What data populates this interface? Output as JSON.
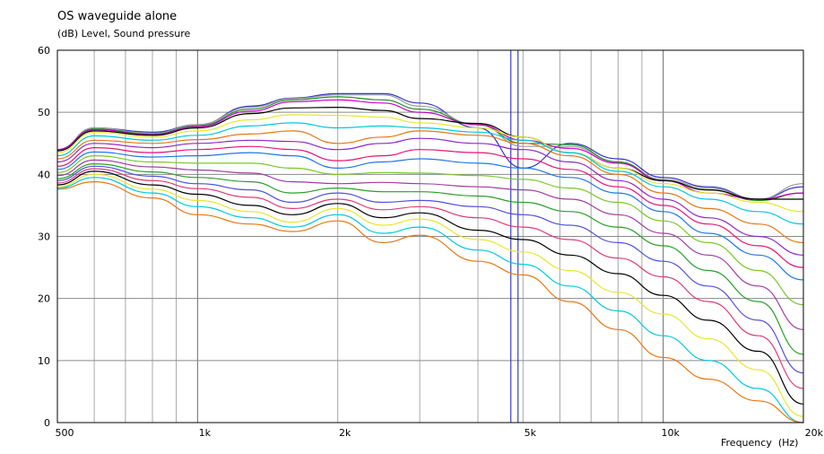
{
  "chart_data": {
    "type": "line",
    "title": "OS waveguide alone",
    "ylabel": "(dB)  Level, Sound pressure",
    "xlabel": "Frequency  (Hz)",
    "x_scale": "log",
    "xlim": [
      500,
      20000
    ],
    "ylim": [
      0,
      60
    ],
    "grid": true,
    "x_tick_labels": [
      {
        "value": 500,
        "label": "500"
      },
      {
        "value": 1000,
        "label": "1k"
      },
      {
        "value": 2000,
        "label": "2k"
      },
      {
        "value": 5000,
        "label": "5k"
      },
      {
        "value": 10000,
        "label": "10k"
      },
      {
        "value": 20000,
        "label": "20k"
      }
    ],
    "y_ticks": [
      0,
      10,
      20,
      30,
      40,
      50,
      60
    ],
    "marker_line_hz": 4750,
    "x": [
      500,
      600,
      800,
      1000,
      1300,
      1600,
      2000,
      2500,
      3000,
      4000,
      5000,
      6300,
      8000,
      10000,
      12500,
      16000,
      20000
    ],
    "series": [
      {
        "color": "#3232c8",
        "values": [
          44.0,
          47.5,
          46.8,
          48.0,
          51.0,
          52.3,
          53.0,
          53.0,
          51.5,
          47.5,
          41.0,
          45.0,
          42.5,
          39.5,
          38.0,
          36.0,
          38.0
        ]
      },
      {
        "color": "#9b9b9b",
        "values": [
          44.0,
          47.5,
          46.6,
          48.0,
          50.8,
          52.2,
          52.8,
          52.8,
          51.0,
          48.0,
          44.5,
          44.5,
          42.0,
          39.2,
          37.8,
          36.0,
          38.5
        ]
      },
      {
        "color": "#1e8c1e",
        "values": [
          44.0,
          47.3,
          46.5,
          47.8,
          50.5,
          52.0,
          52.5,
          52.0,
          50.5,
          48.0,
          45.0,
          44.8,
          42.0,
          39.0,
          37.5,
          35.8,
          37.0
        ]
      },
      {
        "color": "#c800c8",
        "values": [
          44.0,
          47.2,
          46.4,
          47.7,
          50.2,
          51.7,
          52.0,
          51.5,
          50.0,
          48.0,
          45.5,
          44.2,
          41.8,
          39.0,
          37.0,
          36.0,
          37.0
        ]
      },
      {
        "color": "#000000",
        "values": [
          43.8,
          47.0,
          46.3,
          47.5,
          49.8,
          50.7,
          50.8,
          50.3,
          49.0,
          48.2,
          46.0,
          43.5,
          41.0,
          39.0,
          37.5,
          36.0,
          36.0
        ]
      },
      {
        "color": "#e6e632",
        "values": [
          43.5,
          46.8,
          46.0,
          47.0,
          48.8,
          49.6,
          49.5,
          49.2,
          48.3,
          47.5,
          46.0,
          43.5,
          41.0,
          38.5,
          37.0,
          35.5,
          34.0
        ]
      },
      {
        "color": "#00c8dc",
        "values": [
          43.0,
          46.2,
          45.5,
          46.3,
          47.8,
          48.3,
          47.5,
          47.8,
          47.5,
          46.8,
          45.5,
          43.5,
          40.5,
          38.0,
          36.0,
          34.0,
          32.0
        ]
      },
      {
        "color": "#e67814",
        "values": [
          42.5,
          45.5,
          45.0,
          45.6,
          46.5,
          47.0,
          45.0,
          46.0,
          47.0,
          46.3,
          45.0,
          43.0,
          40.0,
          37.0,
          34.5,
          32.0,
          29.0
        ]
      },
      {
        "color": "#8c28c8",
        "values": [
          42.0,
          45.0,
          44.3,
          45.0,
          45.5,
          45.3,
          44.0,
          45.0,
          45.8,
          45.0,
          44.0,
          42.0,
          39.0,
          36.0,
          33.0,
          30.0,
          27.0
        ]
      },
      {
        "color": "#e61478",
        "values": [
          41.3,
          44.3,
          43.5,
          44.0,
          44.5,
          44.0,
          42.2,
          43.0,
          44.0,
          43.5,
          42.5,
          40.8,
          38.0,
          35.0,
          32.0,
          28.5,
          25.0
        ]
      },
      {
        "color": "#1e78e6",
        "values": [
          40.8,
          43.6,
          42.8,
          43.0,
          43.5,
          43.0,
          41.0,
          42.0,
          42.5,
          41.8,
          41.0,
          39.5,
          37.0,
          34.0,
          30.5,
          27.0,
          23.0
        ]
      },
      {
        "color": "#78c828",
        "values": [
          40.3,
          43.0,
          42.0,
          41.8,
          41.8,
          41.0,
          40.0,
          40.3,
          40.2,
          39.8,
          39.2,
          37.8,
          35.5,
          32.5,
          29.0,
          24.5,
          19.0
        ]
      },
      {
        "color": "#a03ca0",
        "values": [
          39.8,
          42.3,
          41.2,
          40.7,
          40.2,
          38.8,
          38.5,
          38.7,
          38.5,
          38.0,
          37.5,
          36.0,
          33.5,
          30.5,
          27.0,
          22.0,
          15.0
        ]
      },
      {
        "color": "#28a028",
        "values": [
          39.3,
          41.7,
          40.4,
          39.5,
          38.8,
          37.0,
          37.8,
          37.2,
          37.2,
          36.5,
          35.5,
          34.0,
          31.5,
          28.5,
          24.5,
          19.5,
          11.0
        ]
      },
      {
        "color": "#5050dc",
        "values": [
          39.0,
          41.3,
          39.7,
          38.5,
          37.5,
          35.5,
          37.0,
          35.5,
          35.8,
          34.8,
          33.5,
          31.8,
          29.0,
          26.0,
          22.0,
          16.5,
          8.0
        ]
      },
      {
        "color": "#dc3c78",
        "values": [
          38.6,
          40.9,
          39.0,
          37.7,
          36.3,
          34.5,
          36.0,
          34.3,
          34.8,
          33.0,
          31.5,
          29.5,
          26.5,
          23.5,
          19.5,
          14.0,
          5.5
        ]
      },
      {
        "color": "#000000",
        "values": [
          38.3,
          40.5,
          38.3,
          36.8,
          35.0,
          33.5,
          35.3,
          33.0,
          33.8,
          31.0,
          29.5,
          27.0,
          24.0,
          20.5,
          16.5,
          11.5,
          3.0
        ]
      },
      {
        "color": "#e6e632",
        "values": [
          38.0,
          40.0,
          37.6,
          35.8,
          34.0,
          32.3,
          34.5,
          31.8,
          32.8,
          29.5,
          27.5,
          24.5,
          21.0,
          17.5,
          13.5,
          8.5,
          1.0
        ]
      },
      {
        "color": "#00c8dc",
        "values": [
          37.8,
          39.5,
          37.0,
          34.8,
          33.0,
          31.5,
          33.5,
          30.5,
          31.5,
          27.8,
          25.5,
          22.0,
          18.0,
          14.0,
          10.0,
          5.5,
          0.0
        ]
      },
      {
        "color": "#e67814",
        "values": [
          37.6,
          38.8,
          36.2,
          33.5,
          32.0,
          30.8,
          32.5,
          29.0,
          30.2,
          26.0,
          23.8,
          19.5,
          15.0,
          10.5,
          7.0,
          3.5,
          0.0
        ]
      }
    ]
  }
}
